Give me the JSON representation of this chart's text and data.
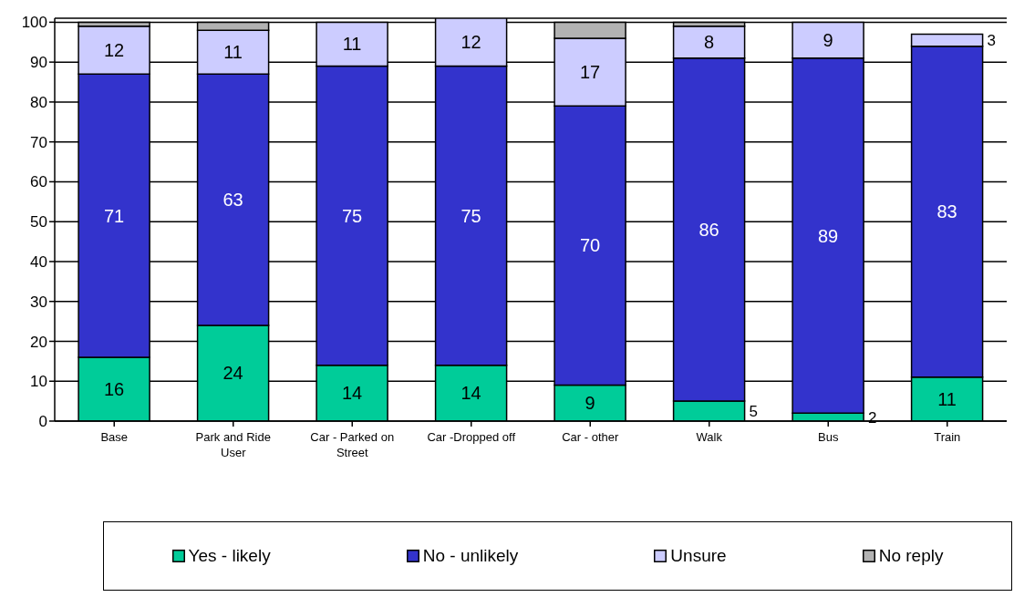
{
  "chart_data": {
    "type": "bar",
    "stacked": true,
    "categories": [
      "Base",
      "Park and Ride User",
      "Car - Parked on Street",
      "Car -Dropped off",
      "Car - other",
      "Walk",
      "Bus",
      "Train"
    ],
    "series": [
      {
        "name": "Yes - likely",
        "color": "#00cc99",
        "values": [
          16,
          24,
          14,
          14,
          9,
          5,
          2,
          11
        ],
        "value_labels": [
          "16",
          "24",
          "14",
          "14",
          "9",
          "5",
          "2",
          "11"
        ]
      },
      {
        "name": "No - unlikely",
        "color": "#3333cc",
        "values": [
          71,
          63,
          75,
          75,
          70,
          86,
          89,
          83
        ],
        "value_labels": [
          "71",
          "63",
          "75",
          "75",
          "70",
          "86",
          "89",
          "83"
        ]
      },
      {
        "name": "Unsure",
        "color": "#ccccff",
        "values": [
          12,
          11,
          11,
          12,
          17,
          8,
          9,
          3
        ],
        "value_labels": [
          "12",
          "11",
          "11",
          "12",
          "17",
          "8",
          "9",
          "3"
        ]
      },
      {
        "name": "No reply",
        "color": "#b2b2b2",
        "values": [
          1,
          2,
          null,
          null,
          4,
          1,
          null,
          null
        ]
      }
    ],
    "ylim": [
      0,
      101
    ],
    "yticks": [
      0,
      10,
      20,
      30,
      40,
      50,
      60,
      70,
      80,
      90,
      100
    ],
    "grid": "y",
    "legend": "bottom"
  }
}
